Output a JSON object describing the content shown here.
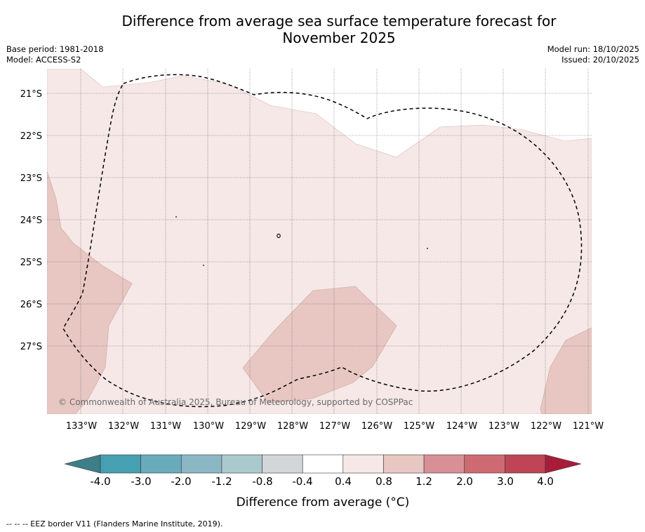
{
  "title_line1": "Difference from average sea surface temperature forecast for",
  "title_line2": "November 2025",
  "base_period": "Base period: 1981-2018",
  "model": "Model: ACCESS-S2",
  "model_run": "Model run: 18/10/2025",
  "issued": "Issued: 20/10/2025",
  "copyright": "© Commonwealth of Australia 2025, Bureau of Meteorology, supported by COSPPac",
  "footnote": "-- -- -- EEZ border V11 (Flanders Marine Institute, 2019).",
  "colorbar": {
    "title": "Difference from average (°C)",
    "tick_labels": [
      "-4.0",
      "-3.0",
      "-2.0",
      "-1.2",
      "-0.8",
      "-0.4",
      "0.4",
      "0.8",
      "1.2",
      "2.0",
      "3.0",
      "4.0"
    ],
    "under_color": "#3d7f88",
    "over_color": "#a81c3a",
    "colors": [
      "#46a0b1",
      "#6aabbb",
      "#8ab7c3",
      "#aac9cd",
      "#d3d6d8",
      "#ffffff",
      "#f5e8e7",
      "#e8c7c3",
      "#d98f96",
      "#ce6b72",
      "#bf4556"
    ]
  },
  "map": {
    "lat_labels": [
      "21°S",
      "22°S",
      "23°S",
      "24°S",
      "25°S",
      "26°S",
      "27°S"
    ],
    "lon_labels": [
      "133°W",
      "132°W",
      "131°W",
      "130°W",
      "129°W",
      "128°W",
      "127°W",
      "126°W",
      "125°W",
      "124°W",
      "123°W",
      "122°W",
      "121°W"
    ],
    "anomaly_colors": {
      "light": "#f5e8e7",
      "medium": "#e8c7c3"
    }
  }
}
